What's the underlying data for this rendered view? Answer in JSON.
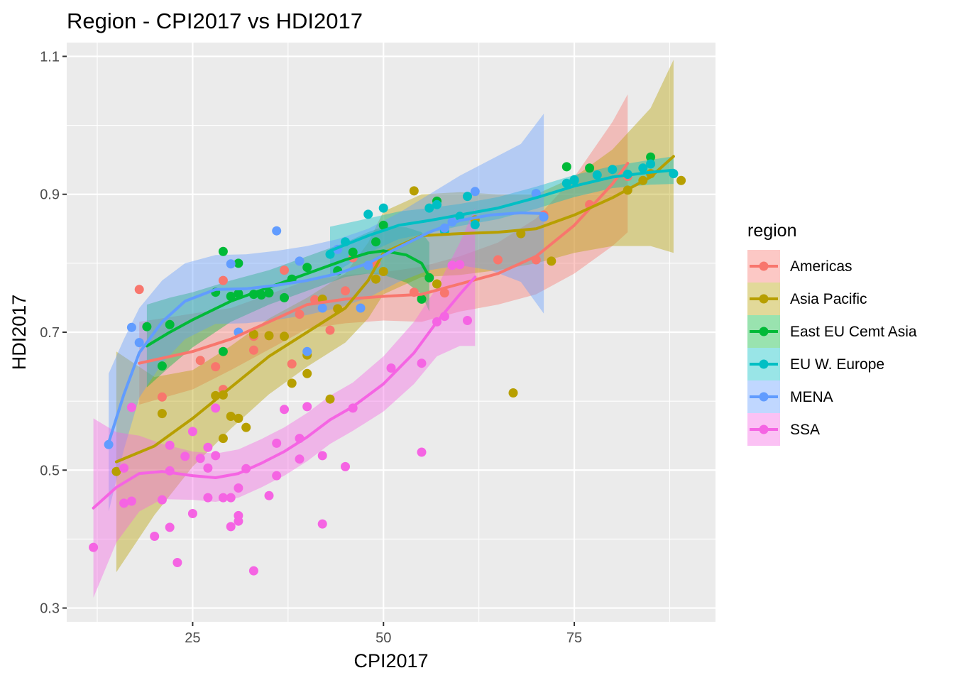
{
  "chart_data": {
    "type": "scatter",
    "title": "Region - CPI2017 vs HDI2017",
    "xlabel": "CPI2017",
    "ylabel": "HDI2017",
    "xlim": [
      8.5,
      93.5
    ],
    "ylim": [
      0.28,
      1.12
    ],
    "xticks": [
      25,
      50,
      75
    ],
    "yticks": [
      0.3,
      0.5,
      0.7,
      0.9,
      1.1
    ],
    "ytick_labels": [
      "0.3",
      "0.5",
      "0.7",
      "0.9",
      "1.1"
    ],
    "grid": true,
    "legend_title": "region",
    "legend_position": "right",
    "series": [
      {
        "name": "Americas",
        "color": "#F8766D",
        "points": [
          [
            18,
            0.762
          ],
          [
            21,
            0.606
          ],
          [
            26,
            0.659
          ],
          [
            28,
            0.65
          ],
          [
            29,
            0.617
          ],
          [
            29,
            0.775
          ],
          [
            31,
            0.756
          ],
          [
            33,
            0.674
          ],
          [
            33,
            0.694
          ],
          [
            37,
            0.79
          ],
          [
            38,
            0.654
          ],
          [
            39,
            0.726
          ],
          [
            41,
            0.747
          ],
          [
            43,
            0.703
          ],
          [
            44,
            0.734
          ],
          [
            45,
            0.76
          ],
          [
            46,
            0.808
          ],
          [
            49,
            0.8
          ],
          [
            54,
            0.758
          ],
          [
            55,
            0.75
          ],
          [
            58,
            0.757
          ],
          [
            65,
            0.805
          ],
          [
            70,
            0.805
          ],
          [
            77,
            0.885
          ],
          [
            82,
            0.926
          ],
          [
            71,
            0.87
          ]
        ],
        "smooth": [
          [
            18,
            0.655
          ],
          [
            25,
            0.672
          ],
          [
            30,
            0.69
          ],
          [
            35,
            0.715
          ],
          [
            40,
            0.74
          ],
          [
            45,
            0.748
          ],
          [
            50,
            0.752
          ],
          [
            55,
            0.755
          ],
          [
            60,
            0.77
          ],
          [
            65,
            0.785
          ],
          [
            70,
            0.81
          ],
          [
            75,
            0.855
          ],
          [
            80,
            0.915
          ],
          [
            82,
            0.945
          ]
        ],
        "band": [
          0.06,
          0.055,
          0.045,
          0.04,
          0.035,
          0.035,
          0.035,
          0.04,
          0.04,
          0.045,
          0.055,
          0.07,
          0.09,
          0.1
        ]
      },
      {
        "name": "Asia Pacific",
        "color": "#B79F00",
        "points": [
          [
            15,
            0.498
          ],
          [
            21,
            0.582
          ],
          [
            28,
            0.608
          ],
          [
            29,
            0.609
          ],
          [
            29,
            0.546
          ],
          [
            30,
            0.578
          ],
          [
            31,
            0.575
          ],
          [
            32,
            0.562
          ],
          [
            33,
            0.697
          ],
          [
            35,
            0.695
          ],
          [
            37,
            0.694
          ],
          [
            38,
            0.626
          ],
          [
            40,
            0.64
          ],
          [
            40,
            0.667
          ],
          [
            42,
            0.748
          ],
          [
            43,
            0.603
          ],
          [
            44,
            0.734
          ],
          [
            49,
            0.777
          ],
          [
            50,
            0.788
          ],
          [
            54,
            0.905
          ],
          [
            57,
            0.77
          ],
          [
            62,
            0.863
          ],
          [
            67,
            0.612
          ],
          [
            68,
            0.843
          ],
          [
            72,
            0.803
          ],
          [
            84,
            0.92
          ],
          [
            89,
            0.92
          ],
          [
            85,
            0.93
          ],
          [
            82,
            0.906
          ]
        ],
        "smooth": [
          [
            15,
            0.512
          ],
          [
            20,
            0.535
          ],
          [
            25,
            0.575
          ],
          [
            30,
            0.62
          ],
          [
            35,
            0.665
          ],
          [
            40,
            0.7
          ],
          [
            45,
            0.735
          ],
          [
            48,
            0.775
          ],
          [
            50,
            0.815
          ],
          [
            55,
            0.84
          ],
          [
            60,
            0.843
          ],
          [
            65,
            0.845
          ],
          [
            70,
            0.85
          ],
          [
            75,
            0.87
          ],
          [
            80,
            0.895
          ],
          [
            85,
            0.925
          ],
          [
            88,
            0.955
          ]
        ],
        "band": [
          0.16,
          0.1,
          0.07,
          0.06,
          0.055,
          0.05,
          0.05,
          0.055,
          0.06,
          0.06,
          0.06,
          0.055,
          0.05,
          0.055,
          0.07,
          0.1,
          0.14
        ]
      },
      {
        "name": "East EU Cemt Asia",
        "color": "#00BA38",
        "points": [
          [
            19,
            0.708
          ],
          [
            21,
            0.651
          ],
          [
            22,
            0.711
          ],
          [
            28,
            0.758
          ],
          [
            29,
            0.817
          ],
          [
            29,
            0.672
          ],
          [
            30,
            0.752
          ],
          [
            31,
            0.756
          ],
          [
            31,
            0.8
          ],
          [
            33,
            0.755
          ],
          [
            34,
            0.754
          ],
          [
            35,
            0.757
          ],
          [
            37,
            0.75
          ],
          [
            38,
            0.777
          ],
          [
            40,
            0.794
          ],
          [
            44,
            0.789
          ],
          [
            46,
            0.816
          ],
          [
            49,
            0.831
          ],
          [
            50,
            0.855
          ],
          [
            55,
            0.748
          ],
          [
            56,
            0.779
          ],
          [
            57,
            0.89
          ],
          [
            74,
            0.94
          ],
          [
            77,
            0.938
          ],
          [
            85,
            0.954
          ]
        ],
        "smooth": [
          [
            19,
            0.68
          ],
          [
            22,
            0.7
          ],
          [
            25,
            0.718
          ],
          [
            30,
            0.745
          ],
          [
            35,
            0.765
          ],
          [
            40,
            0.785
          ],
          [
            45,
            0.805
          ],
          [
            48,
            0.815
          ],
          [
            50,
            0.818
          ],
          [
            53,
            0.812
          ],
          [
            55,
            0.8
          ],
          [
            56,
            0.78
          ]
        ],
        "band": [
          0.06,
          0.05,
          0.04,
          0.03,
          0.025,
          0.025,
          0.025,
          0.03,
          0.035,
          0.04,
          0.045,
          0.05
        ]
      },
      {
        "name": "EU W. Europe",
        "color": "#00BFC4",
        "points": [
          [
            43,
            0.813
          ],
          [
            45,
            0.831
          ],
          [
            48,
            0.871
          ],
          [
            50,
            0.88
          ],
          [
            56,
            0.88
          ],
          [
            57,
            0.885
          ],
          [
            58,
            0.847
          ],
          [
            60,
            0.868
          ],
          [
            61,
            0.897
          ],
          [
            62,
            0.856
          ],
          [
            70,
            0.901
          ],
          [
            74,
            0.916
          ],
          [
            75,
            0.92
          ],
          [
            78,
            0.928
          ],
          [
            80,
            0.936
          ],
          [
            82,
            0.929
          ],
          [
            84,
            0.938
          ],
          [
            85,
            0.944
          ],
          [
            88,
            0.93
          ],
          [
            75,
            0.921
          ]
        ],
        "smooth": [
          [
            43,
            0.818
          ],
          [
            48,
            0.84
          ],
          [
            52,
            0.855
          ],
          [
            56,
            0.862
          ],
          [
            60,
            0.87
          ],
          [
            65,
            0.88
          ],
          [
            70,
            0.895
          ],
          [
            75,
            0.912
          ],
          [
            80,
            0.925
          ],
          [
            85,
            0.932
          ],
          [
            88,
            0.935
          ]
        ],
        "band": [
          0.035,
          0.025,
          0.02,
          0.018,
          0.016,
          0.016,
          0.016,
          0.016,
          0.016,
          0.018,
          0.02
        ]
      },
      {
        "name": "MENA",
        "color": "#619CFF",
        "points": [
          [
            14,
            0.537
          ],
          [
            17,
            0.707
          ],
          [
            18,
            0.685
          ],
          [
            30,
            0.799
          ],
          [
            31,
            0.7
          ],
          [
            36,
            0.847
          ],
          [
            39,
            0.803
          ],
          [
            40,
            0.672
          ],
          [
            42,
            0.735
          ],
          [
            44,
            0.82
          ],
          [
            47,
            0.735
          ],
          [
            48,
            0.797
          ],
          [
            58,
            0.851
          ],
          [
            59,
            0.86
          ],
          [
            62,
            0.904
          ],
          [
            70,
            0.901
          ],
          [
            71,
            0.867
          ]
        ],
        "smooth": [
          [
            14,
            0.54
          ],
          [
            16,
            0.61
          ],
          [
            18,
            0.67
          ],
          [
            21,
            0.715
          ],
          [
            24,
            0.745
          ],
          [
            28,
            0.762
          ],
          [
            32,
            0.763
          ],
          [
            36,
            0.768
          ],
          [
            40,
            0.775
          ],
          [
            44,
            0.785
          ],
          [
            48,
            0.8
          ],
          [
            52,
            0.823
          ],
          [
            56,
            0.845
          ],
          [
            60,
            0.862
          ],
          [
            64,
            0.87
          ],
          [
            68,
            0.873
          ],
          [
            71,
            0.872
          ]
        ],
        "band": [
          0.1,
          0.08,
          0.065,
          0.06,
          0.055,
          0.05,
          0.05,
          0.05,
          0.05,
          0.05,
          0.05,
          0.05,
          0.055,
          0.065,
          0.08,
          0.1,
          0.145
        ]
      },
      {
        "name": "SSA",
        "color": "#F564E3",
        "points": [
          [
            12,
            0.388
          ],
          [
            16,
            0.503
          ],
          [
            16,
            0.452
          ],
          [
            17,
            0.591
          ],
          [
            17,
            0.455
          ],
          [
            20,
            0.404
          ],
          [
            21,
            0.457
          ],
          [
            22,
            0.417
          ],
          [
            22,
            0.536
          ],
          [
            22,
            0.499
          ],
          [
            23,
            0.366
          ],
          [
            24,
            0.52
          ],
          [
            25,
            0.556
          ],
          [
            25,
            0.437
          ],
          [
            26,
            0.517
          ],
          [
            27,
            0.503
          ],
          [
            27,
            0.533
          ],
          [
            27,
            0.46
          ],
          [
            28,
            0.59
          ],
          [
            28,
            0.521
          ],
          [
            29,
            0.46
          ],
          [
            30,
            0.418
          ],
          [
            30,
            0.46
          ],
          [
            31,
            0.474
          ],
          [
            31,
            0.434
          ],
          [
            31,
            0.426
          ],
          [
            32,
            0.502
          ],
          [
            33,
            0.354
          ],
          [
            35,
            0.463
          ],
          [
            36,
            0.492
          ],
          [
            36,
            0.539
          ],
          [
            37,
            0.588
          ],
          [
            39,
            0.516
          ],
          [
            39,
            0.546
          ],
          [
            40,
            0.592
          ],
          [
            42,
            0.521
          ],
          [
            42,
            0.422
          ],
          [
            45,
            0.505
          ],
          [
            46,
            0.59
          ],
          [
            51,
            0.648
          ],
          [
            55,
            0.526
          ],
          [
            55,
            0.655
          ],
          [
            57,
            0.715
          ],
          [
            58,
            0.723
          ],
          [
            59,
            0.797
          ],
          [
            60,
            0.798
          ],
          [
            61,
            0.717
          ]
        ],
        "smooth": [
          [
            12,
            0.445
          ],
          [
            15,
            0.475
          ],
          [
            18,
            0.495
          ],
          [
            21,
            0.498
          ],
          [
            25,
            0.492
          ],
          [
            28,
            0.489
          ],
          [
            31,
            0.495
          ],
          [
            34,
            0.51
          ],
          [
            37,
            0.527
          ],
          [
            40,
            0.548
          ],
          [
            43,
            0.573
          ],
          [
            46,
            0.592
          ],
          [
            50,
            0.625
          ],
          [
            54,
            0.67
          ],
          [
            57,
            0.715
          ],
          [
            60,
            0.755
          ],
          [
            62,
            0.78
          ]
        ],
        "band": [
          0.13,
          0.08,
          0.055,
          0.04,
          0.035,
          0.035,
          0.035,
          0.035,
          0.035,
          0.035,
          0.035,
          0.035,
          0.04,
          0.045,
          0.05,
          0.075,
          0.1
        ]
      }
    ]
  }
}
